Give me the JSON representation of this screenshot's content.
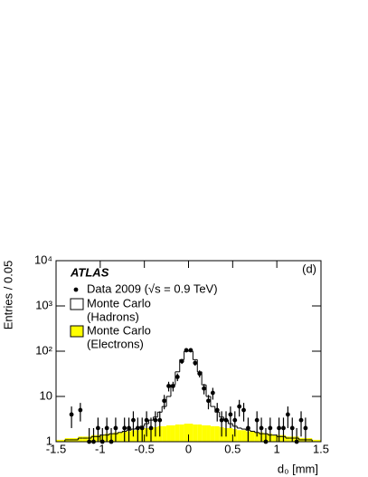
{
  "chart_data": {
    "type": "histogram",
    "experiment": "ATLAS",
    "panel_label": "(d)",
    "xlabel": "d₀ [mm]",
    "ylabel": "Entries / 0.05",
    "log_y": true,
    "xlim": [
      -1.5,
      1.5
    ],
    "ylim": [
      1,
      10000
    ],
    "xticks": [
      -1.5,
      -1,
      -0.5,
      0,
      0.5,
      1,
      1.5
    ],
    "yticks": [
      1,
      10,
      {
        "value": 100,
        "label": "10²"
      },
      {
        "value": 1000,
        "label": "10³"
      },
      {
        "value": 10000,
        "label": "10⁴"
      }
    ],
    "bins": [
      -1.5,
      -1.45,
      -1.4,
      -1.35,
      -1.3,
      -1.25,
      -1.2,
      -1.15,
      -1.1,
      -1.05,
      -1,
      -0.95,
      -0.9,
      -0.85,
      -0.8,
      -0.75,
      -0.7,
      -0.65,
      -0.6,
      -0.55,
      -0.5,
      -0.45,
      -0.4,
      -0.35,
      -0.3,
      -0.25,
      -0.2,
      -0.15,
      -0.1,
      -0.05,
      0,
      0.05,
      0.1,
      0.15,
      0.2,
      0.25,
      0.3,
      0.35,
      0.4,
      0.45,
      0.5,
      0.55,
      0.6,
      0.65,
      0.7,
      0.75,
      0.8,
      0.85,
      0.9,
      0.95,
      1,
      1.05,
      1.1,
      1.15,
      1.2,
      1.25,
      1.3,
      1.35,
      1.4,
      1.45,
      1.5
    ],
    "series": [
      {
        "name": "Monte Carlo",
        "sublabel": "(Electrons)",
        "style": "filled",
        "color": "#ffff00",
        "values": [
          1.1,
          1.1,
          1.2,
          1.2,
          1.2,
          1.3,
          1.3,
          1.3,
          1.4,
          1.4,
          1.4,
          1.5,
          1.5,
          1.6,
          1.6,
          1.7,
          1.7,
          1.8,
          1.8,
          1.9,
          2,
          2,
          2.1,
          2.2,
          2.2,
          2.3,
          2.3,
          2.4,
          2.4,
          2.5,
          2.5,
          2.4,
          2.4,
          2.3,
          2.3,
          2.2,
          2.2,
          2.1,
          2,
          2,
          1.9,
          1.8,
          1.8,
          1.7,
          1.7,
          1.6,
          1.6,
          1.5,
          1.5,
          1.4,
          1.4,
          1.4,
          1.3,
          1.3,
          1.3,
          1.2,
          1.2,
          1.2,
          1.1,
          1.1
        ]
      },
      {
        "name": "Monte Carlo",
        "sublabel": "(Hadrons)",
        "style": "step",
        "color": "#000000",
        "values": [
          1,
          1,
          1.1,
          1.1,
          1.1,
          1.2,
          1.2,
          1.2,
          1.3,
          1.3,
          1.4,
          1.4,
          1.5,
          1.5,
          1.6,
          1.7,
          1.8,
          1.9,
          2,
          2.2,
          2.5,
          3,
          3.5,
          4.5,
          6,
          10,
          18,
          35,
          65,
          100,
          100,
          65,
          35,
          18,
          10,
          6,
          4.5,
          3.5,
          3,
          2.5,
          2.2,
          2,
          1.9,
          1.8,
          1.7,
          1.6,
          1.5,
          1.5,
          1.4,
          1.4,
          1.3,
          1.3,
          1.2,
          1.2,
          1.2,
          1.1,
          1.1,
          1.1,
          1,
          1
        ]
      },
      {
        "name": "Data 2009 (√s = 0.9 TeV)",
        "style": "points",
        "color": "#000000",
        "values": [
          null,
          null,
          null,
          4,
          null,
          5,
          null,
          1,
          1,
          2,
          1,
          2,
          1,
          2,
          null,
          2,
          2,
          3,
          2,
          2,
          3,
          2,
          3,
          3,
          8,
          17,
          17,
          27,
          60,
          105,
          105,
          55,
          32,
          15,
          8,
          12,
          5,
          3,
          3,
          4,
          3,
          6,
          5,
          2,
          null,
          3,
          2,
          1,
          2,
          null,
          2,
          2,
          4,
          2,
          1,
          3,
          2,
          null,
          null,
          null
        ],
        "errors": [
          null,
          null,
          null,
          2,
          null,
          2.2,
          null,
          1,
          1,
          1.4,
          1,
          1.4,
          1,
          1.4,
          null,
          1.4,
          1.4,
          1.7,
          1.4,
          1.4,
          1.7,
          1.4,
          1.7,
          1.7,
          2.8,
          4.1,
          4.1,
          5.2,
          7.7,
          10.2,
          10.2,
          7.4,
          5.7,
          3.9,
          2.8,
          3.5,
          2.2,
          1.7,
          1.7,
          2,
          1.7,
          2.4,
          2.2,
          1.4,
          null,
          1.7,
          1.4,
          1,
          1.4,
          null,
          1.4,
          1.4,
          2,
          1.4,
          1,
          1.7,
          1.4,
          null,
          null,
          null
        ]
      }
    ]
  }
}
